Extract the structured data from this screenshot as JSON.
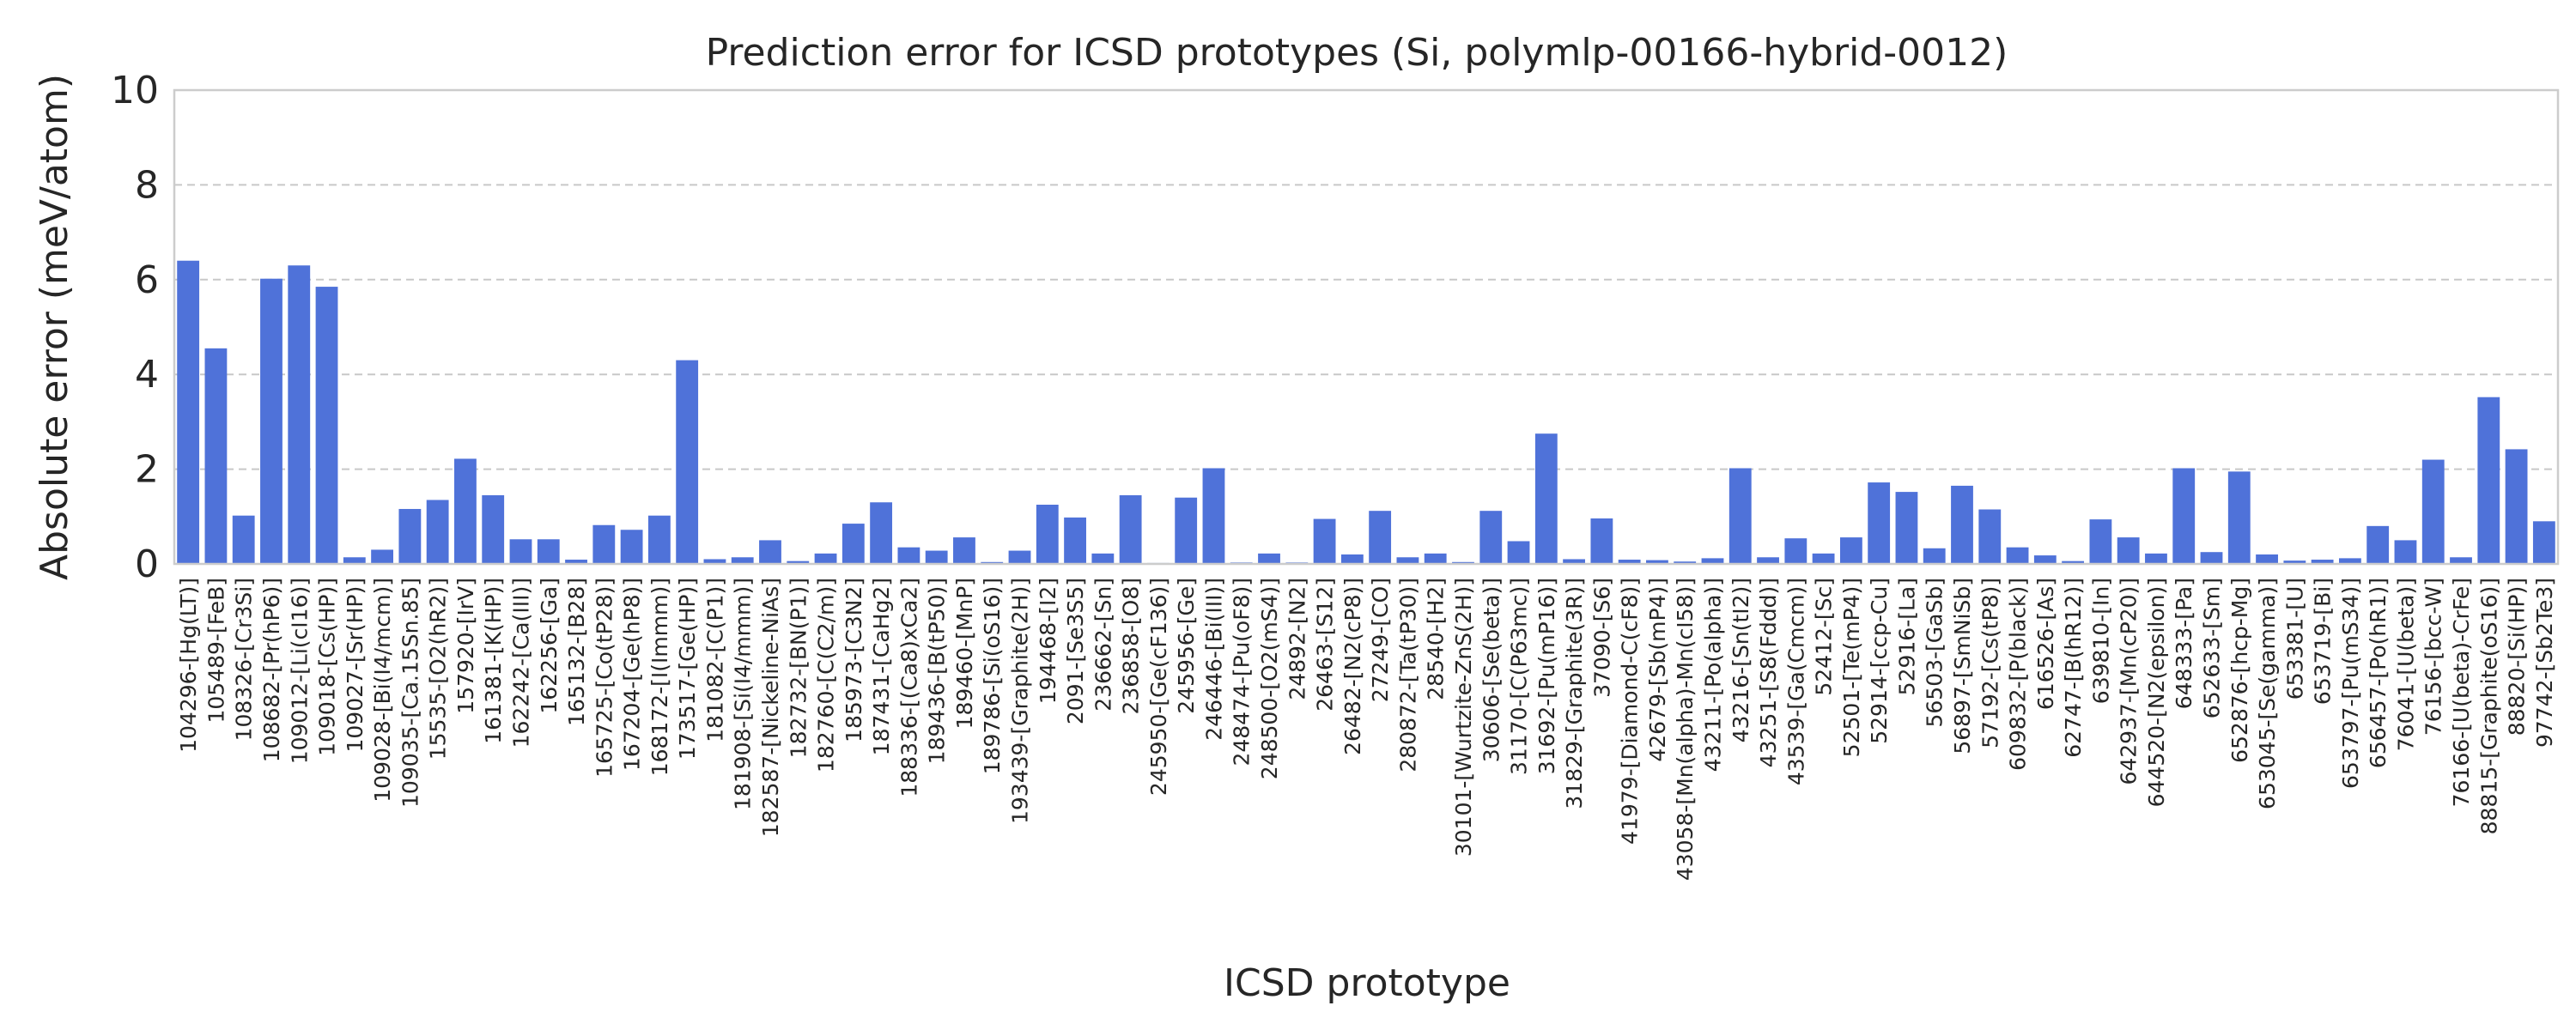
{
  "chart_data": {
    "type": "bar",
    "title": "Prediction error for ICSD prototypes (Si, polymlp-00166-hybrid-0012)",
    "xlabel": "ICSD prototype",
    "ylabel": "Absolute error (meV/atom)",
    "ylim": [
      0,
      10
    ],
    "yticks": [
      "0",
      "2",
      "4",
      "6",
      "8",
      "10"
    ],
    "grid": "horizontal dashed",
    "bar_color": "#4f72d9",
    "categories": [
      "104296-[Hg(LT)]",
      "105489-[FeB]",
      "108326-[Cr3Si]",
      "108682-[Pr(hP6)]",
      "109012-[Li(cI16)]",
      "109018-[Cs(HP)]",
      "109027-[Sr(HP)]",
      "109028-[Bi(I4/mcm)]",
      "109035-[Ca.15Sn.85]",
      "15535-[O2(hR2)]",
      "157920-[IrV]",
      "161381-[K(HP)]",
      "162242-[Ca(III)]",
      "162256-[Ga]",
      "165132-[B28]",
      "165725-[Co(tP28)]",
      "167204-[Ge(hP8)]",
      "168172-[I(Immm)]",
      "173517-[Ge(HP)]",
      "181082-[C(P1)]",
      "181908-[Si(I4/mmm)]",
      "182587-[Nickeline-NiAs]",
      "182732-[BN(P1)]",
      "182760-[C(C2/m)]",
      "185973-[C3N2]",
      "187431-[CaHg2]",
      "188336-[(Ca8)xCa2]",
      "189436-[B(tP50)]",
      "189460-[MnP]",
      "189786-[Si(oS16)]",
      "193439-[Graphite(2H)]",
      "194468-[I2]",
      "2091-[Se3S5]",
      "236662-[Sn]",
      "236858-[O8]",
      "245950-[Ge(cF136)]",
      "245956-[Ge]",
      "246446-[Bi(III)]",
      "248474-[Pu(oF8)]",
      "248500-[O2(mS4)]",
      "24892-[N2]",
      "26463-[S12]",
      "26482-[N2(cP8)]",
      "27249-[CO]",
      "280872-[Ta(tP30)]",
      "28540-[H2]",
      "30101-[Wurtzite-ZnS(2H)]",
      "30606-[Se(beta)]",
      "31170-[C(P63mc)]",
      "31692-[Pu(mP16)]",
      "31829-[Graphite(3R)]",
      "37090-[S6]",
      "41979-[Diamond-C(cF8)]",
      "42679-[Sb(mP4)]",
      "43058-[Mn(alpha)-Mn(cI58)]",
      "43211-[Po(alpha)]",
      "43216-[Sn(tI2)]",
      "43251-[S8(Fddd)]",
      "43539-[Ga(Cmcm)]",
      "52412-[Sc]",
      "52501-[Te(mP4)]",
      "52914-[ccp-Cu]",
      "52916-[La]",
      "56503-[GaSb]",
      "56897-[SmNiSb]",
      "57192-[Cs(tP8)]",
      "609832-[P(black)]",
      "616526-[As]",
      "62747-[B(hR12)]",
      "639810-[In]",
      "642937-[Mn(cP20)]",
      "644520-[N2(epsilon)]",
      "648333-[Pa]",
      "652633-[Sm]",
      "652876-[hcp-Mg]",
      "653045-[Se(gamma)]",
      "653381-[U]",
      "653719-[Bi]",
      "653797-[Pu(mS34)]",
      "656457-[Po(hR1)]",
      "76041-[U(beta)]",
      "76156-[bcc-W]",
      "76166-[U(beta)-CrFe]",
      "88815-[Graphite(oS16)]",
      "88820-[Si(HP)]",
      "97742-[Sb2Te3]"
    ],
    "values": [
      6.4,
      4.55,
      1.02,
      6.02,
      6.3,
      5.85,
      0.14,
      0.3,
      1.16,
      1.35,
      2.22,
      1.45,
      0.52,
      0.52,
      0.09,
      0.82,
      0.72,
      1.02,
      4.3,
      0.1,
      0.14,
      0.5,
      0.06,
      0.22,
      0.85,
      1.3,
      0.35,
      0.28,
      0.56,
      0.04,
      0.28,
      1.25,
      0.98,
      0.22,
      1.45,
      0.02,
      1.4,
      2.02,
      0.03,
      0.22,
      0.03,
      0.95,
      0.2,
      1.12,
      0.14,
      0.22,
      0.04,
      1.12,
      0.48,
      2.75,
      0.1,
      0.96,
      0.09,
      0.08,
      0.05,
      0.12,
      2.02,
      0.14,
      0.54,
      0.22,
      0.56,
      1.72,
      1.52,
      0.33,
      1.65,
      1.15,
      0.35,
      0.18,
      0.06,
      0.94,
      0.56,
      0.22,
      2.02,
      0.25,
      1.95,
      0.2,
      0.07,
      0.09,
      0.12,
      0.8,
      0.5,
      2.2,
      0.14,
      3.52,
      2.42,
      0.9
    ]
  }
}
